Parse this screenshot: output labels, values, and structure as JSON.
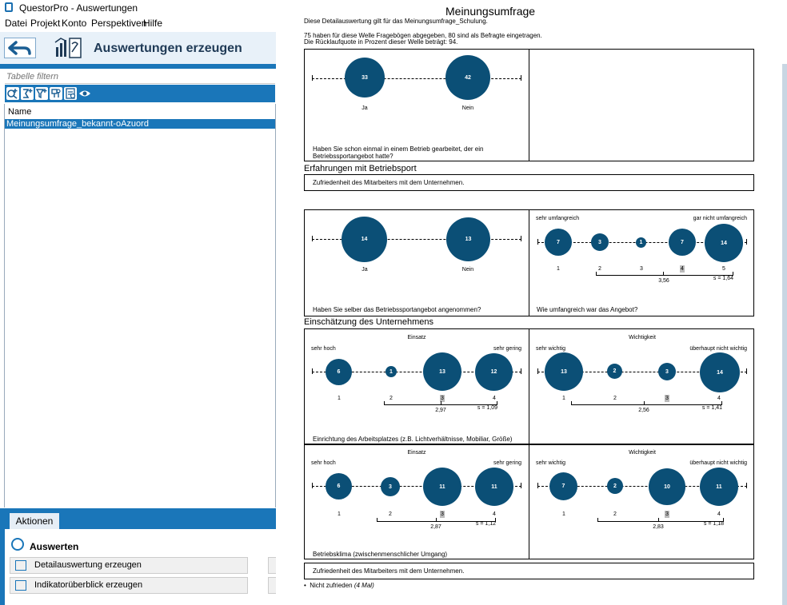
{
  "window": {
    "title": "QuestorPro - Auswertungen"
  },
  "menu": [
    "Datei",
    "Projekt",
    "Konto",
    "Perspektiven",
    "Hilfe"
  ],
  "header": {
    "title": "Auswertungen erzeugen"
  },
  "filter": {
    "placeholder": "Tabelle filtern"
  },
  "table": {
    "column": "Name",
    "rows": [
      "Meinungsumfrage_bekannt-oAzuord"
    ]
  },
  "actions": {
    "tab": "Aktionen",
    "group": "Auswerten",
    "buttons": [
      "Detailauswertung erzeugen",
      "Indikatorüberblick erzeugen"
    ]
  },
  "report": {
    "title": "Meinungsumfrage",
    "intro1": "Diese Detailauswertung gilt für das Meinungsumfrage_Schulung.",
    "intro2": "75 haben für diese Welle Fragebögen abgegeben, 80 sind als Befragte eingetragen.",
    "intro3": "Die Rücklaufquote in Prozent dieser Welle beträgt: 94.",
    "q1": {
      "question": "Haben Sie schon einmal in einem Betrieb gearbeitet, der ein Betriebssportangebot hatte?",
      "values": [
        "33",
        "42"
      ],
      "labels": [
        "Ja",
        "Nein"
      ]
    },
    "section1": "Erfahrungen mit Betriebsport",
    "section1_box": "Zufriedenheit des Mitarbeiters mit dem Unternehmen.",
    "q2": {
      "question": "Haben Sie selber das Betriebssportangebot angenommen?",
      "values": [
        "14",
        "13"
      ],
      "labels": [
        "Ja",
        "Nein"
      ]
    },
    "q3": {
      "question": "Wie umfangreich war das Angebot?",
      "left": "sehr umfangreich",
      "right": "gar nicht umfangreich",
      "values": [
        "7",
        "3",
        "1",
        "7",
        "14"
      ],
      "scale": [
        "1",
        "2",
        "3",
        "4",
        "5"
      ],
      "mean": "3,56",
      "sd": "s = 1,64"
    },
    "section2": "Einschätzung des Unternehmens",
    "q4": {
      "question": "Einrichtung des Arbeitsplatzes (z.B. Lichtverhältnisse, Mobiliar, Größe)",
      "a": {
        "title": "Einsatz",
        "left": "sehr hoch",
        "right": "sehr gering",
        "values": [
          "6",
          "1",
          "13",
          "12"
        ],
        "scale": [
          "1",
          "2",
          "3",
          "4"
        ],
        "mean": "2,97",
        "sd": "s = 1,09"
      },
      "b": {
        "title": "Wichtigkeit",
        "left": "sehr wichtig",
        "right": "überhaupt nicht wichtig",
        "values": [
          "13",
          "2",
          "3",
          "14"
        ],
        "scale": [
          "1",
          "2",
          "3",
          "4"
        ],
        "mean": "2,56",
        "sd": "s = 1,41"
      }
    },
    "q5": {
      "question": "Betriebsklima (zwischenmenschlicher Umgang)",
      "a": {
        "title": "Einsatz",
        "left": "sehr hoch",
        "right": "sehr gering",
        "values": [
          "6",
          "3",
          "11",
          "11"
        ],
        "scale": [
          "1",
          "2",
          "3",
          "4"
        ],
        "mean": "2,87",
        "sd": "s = 1,12"
      },
      "b": {
        "title": "Wichtigkeit",
        "left": "sehr wichtig",
        "right": "überhaupt nicht wichtig",
        "values": [
          "7",
          "2",
          "10",
          "11"
        ],
        "scale": [
          "1",
          "2",
          "3",
          "4"
        ],
        "mean": "2,83",
        "sd": "s = 1,18"
      }
    },
    "section3_box": "Zufriedenheit des Mitarbeiters mit dem Unternehmen.",
    "bullet": "Nicht zufrieden",
    "bullet_count": "(4 Mal)"
  }
}
